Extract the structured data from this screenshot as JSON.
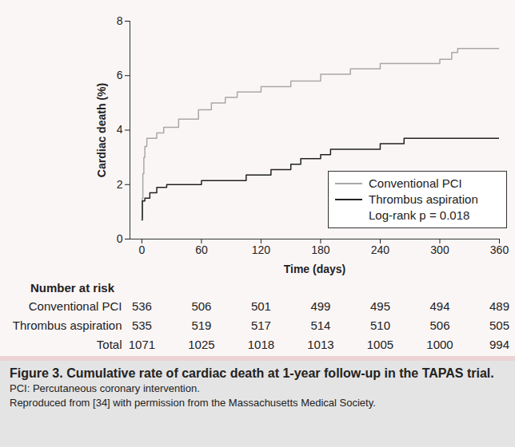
{
  "chart_data": {
    "type": "line",
    "x_label": "Time (days)",
    "y_label": "Cardiac death (%)",
    "xlim": [
      -12,
      360
    ],
    "xticks": [
      0,
      60,
      120,
      180,
      240,
      300,
      360
    ],
    "ylim": [
      0,
      8
    ],
    "yticks": [
      0,
      2,
      4,
      6,
      8
    ],
    "grid": false,
    "legend": "lower right",
    "annotation": "Log-rank p = 0.018",
    "series": [
      {
        "name": "Conventional PCI",
        "color": "#a8a8a8",
        "line_style": "step",
        "x": [
          0,
          0.5,
          1,
          2,
          3,
          5,
          15,
          22,
          37,
          57,
          70,
          84,
          96,
          120,
          150,
          180,
          210,
          240,
          300,
          312,
          318,
          360
        ],
        "values": [
          0.8,
          1.5,
          2.4,
          3.0,
          3.4,
          3.7,
          3.9,
          4.1,
          4.4,
          4.75,
          5.0,
          5.2,
          5.4,
          5.6,
          5.8,
          6.05,
          6.25,
          6.45,
          6.6,
          6.85,
          7.0,
          7.0
        ]
      },
      {
        "name": "Thrombus aspiration",
        "color": "#222222",
        "line_style": "step",
        "x": [
          0,
          0.5,
          3,
          8,
          15,
          25,
          60,
          105,
          130,
          150,
          160,
          180,
          190,
          240,
          264,
          360
        ],
        "values": [
          0.7,
          1.4,
          1.5,
          1.7,
          1.9,
          2.0,
          2.15,
          2.35,
          2.55,
          2.75,
          2.95,
          3.1,
          3.3,
          3.5,
          3.7,
          3.7
        ]
      }
    ],
    "number_at_risk": {
      "title": "Number at risk",
      "x": [
        0,
        60,
        120,
        180,
        240,
        300,
        360
      ],
      "rows": [
        {
          "name": "Conventional PCI",
          "values": [
            536,
            506,
            501,
            499,
            495,
            494,
            489
          ]
        },
        {
          "name": "Thrombus aspiration",
          "values": [
            535,
            519,
            517,
            514,
            510,
            506,
            505
          ]
        },
        {
          "name": "Total",
          "values": [
            1071,
            1025,
            1018,
            1013,
            1005,
            1000,
            994
          ]
        }
      ]
    },
    "caption": {
      "title": "Figure 3. Cumulative rate of cardiac death at 1-year follow-up in the TAPAS trial.",
      "notes": [
        "PCI: Percutaneous coronary intervention.",
        "Reproduced from [34] with permission from the Massachusetts Medical Society."
      ]
    }
  }
}
